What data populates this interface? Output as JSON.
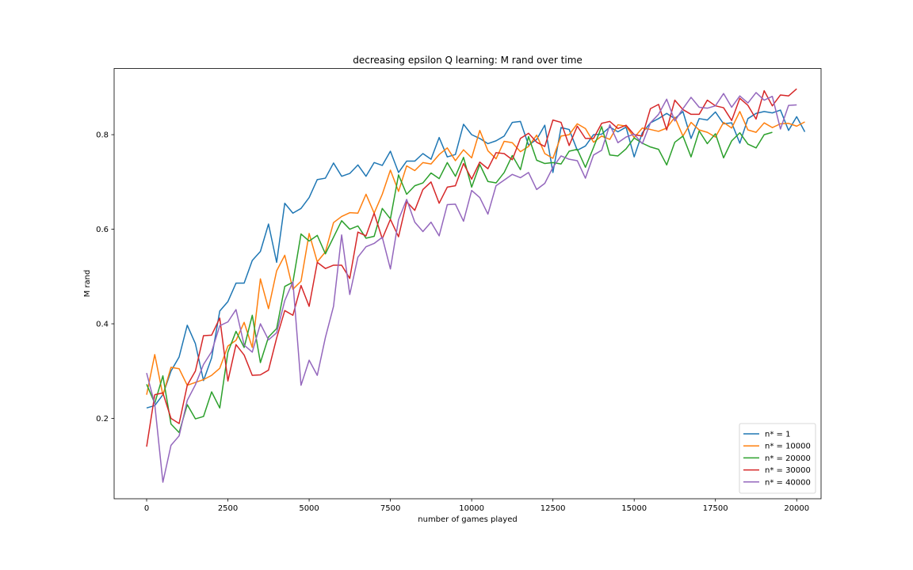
{
  "chart_data": {
    "type": "line",
    "title": "decreasing epsilon Q learning: M rand over time",
    "xlabel": "number of games played",
    "ylabel": "M rand",
    "xlim": [
      -1000,
      20750
    ],
    "ylim": [
      0.03,
      0.94
    ],
    "xticks": [
      0,
      2500,
      5000,
      7500,
      10000,
      12500,
      15000,
      17500,
      20000
    ],
    "yticks": [
      0.2,
      0.4,
      0.6,
      0.8
    ],
    "ytick_labels": [
      "0.2",
      "0.4",
      "0.6",
      "0.8"
    ],
    "grid": false,
    "legend_position": "bottom-right",
    "x_start": 0,
    "x_step": 250,
    "series": [
      {
        "name": "n* = 1",
        "color": "#1f77b4",
        "values": [
          0.222,
          0.227,
          0.25,
          0.3,
          0.33,
          0.397,
          0.358,
          0.28,
          0.328,
          0.427,
          0.447,
          0.486,
          0.486,
          0.534,
          0.553,
          0.611,
          0.53,
          0.655,
          0.634,
          0.644,
          0.667,
          0.705,
          0.708,
          0.74,
          0.712,
          0.718,
          0.736,
          0.712,
          0.741,
          0.735,
          0.765,
          0.72,
          0.744,
          0.744,
          0.76,
          0.748,
          0.794,
          0.753,
          0.758,
          0.822,
          0.8,
          0.792,
          0.781,
          0.787,
          0.797,
          0.826,
          0.828,
          0.778,
          0.79,
          0.82,
          0.72,
          0.815,
          0.811,
          0.767,
          0.776,
          0.8,
          0.801,
          0.816,
          0.806,
          0.816,
          0.753,
          0.804,
          0.825,
          0.834,
          0.845,
          0.834,
          0.849,
          0.792,
          0.834,
          0.831,
          0.848,
          0.823,
          0.825,
          0.782,
          0.834,
          0.845,
          0.849,
          0.846,
          0.852,
          0.809,
          0.838,
          0.806
        ]
      },
      {
        "name": "n* = 10000",
        "color": "#ff7f0e",
        "values": [
          0.25,
          0.335,
          0.249,
          0.308,
          0.305,
          0.27,
          0.276,
          0.282,
          0.291,
          0.306,
          0.353,
          0.365,
          0.403,
          0.35,
          0.495,
          0.432,
          0.512,
          0.545,
          0.473,
          0.49,
          0.591,
          0.531,
          0.552,
          0.614,
          0.627,
          0.635,
          0.634,
          0.674,
          0.634,
          0.674,
          0.725,
          0.68,
          0.734,
          0.724,
          0.741,
          0.738,
          0.758,
          0.772,
          0.745,
          0.768,
          0.751,
          0.809,
          0.766,
          0.749,
          0.786,
          0.783,
          0.764,
          0.775,
          0.799,
          0.76,
          0.75,
          0.797,
          0.8,
          0.823,
          0.813,
          0.784,
          0.797,
          0.79,
          0.821,
          0.818,
          0.794,
          0.814,
          0.811,
          0.807,
          0.814,
          0.837,
          0.797,
          0.826,
          0.81,
          0.805,
          0.795,
          0.826,
          0.814,
          0.849,
          0.81,
          0.805,
          0.825,
          0.815,
          0.823,
          0.824,
          0.818,
          0.827
        ]
      },
      {
        "name": "n* = 20000",
        "color": "#2ca02c",
        "values": [
          0.272,
          0.232,
          0.29,
          0.188,
          0.17,
          0.229,
          0.199,
          0.204,
          0.256,
          0.222,
          0.34,
          0.384,
          0.35,
          0.418,
          0.318,
          0.372,
          0.39,
          0.479,
          0.488,
          0.59,
          0.575,
          0.587,
          0.548,
          0.583,
          0.618,
          0.6,
          0.607,
          0.581,
          0.585,
          0.644,
          0.622,
          0.715,
          0.674,
          0.692,
          0.698,
          0.719,
          0.707,
          0.741,
          0.712,
          0.752,
          0.689,
          0.737,
          0.701,
          0.698,
          0.72,
          0.756,
          0.726,
          0.796,
          0.746,
          0.739,
          0.741,
          0.738,
          0.765,
          0.769,
          0.731,
          0.773,
          0.817,
          0.757,
          0.755,
          0.77,
          0.793,
          0.782,
          0.774,
          0.769,
          0.736,
          0.784,
          0.797,
          0.753,
          0.808,
          0.781,
          0.802,
          0.751,
          0.787,
          0.804,
          0.78,
          0.772,
          0.8,
          0.805
        ]
      },
      {
        "name": "n* = 30000",
        "color": "#d62728",
        "values": [
          0.14,
          0.25,
          0.254,
          0.2,
          0.189,
          0.27,
          0.3,
          0.375,
          0.376,
          0.412,
          0.279,
          0.356,
          0.334,
          0.291,
          0.292,
          0.302,
          0.37,
          0.428,
          0.418,
          0.481,
          0.437,
          0.53,
          0.517,
          0.524,
          0.524,
          0.496,
          0.594,
          0.586,
          0.634,
          0.58,
          0.621,
          0.584,
          0.658,
          0.64,
          0.684,
          0.7,
          0.655,
          0.689,
          0.692,
          0.739,
          0.706,
          0.742,
          0.728,
          0.762,
          0.76,
          0.747,
          0.792,
          0.803,
          0.784,
          0.775,
          0.831,
          0.826,
          0.777,
          0.818,
          0.792,
          0.792,
          0.824,
          0.828,
          0.813,
          0.82,
          0.8,
          0.797,
          0.855,
          0.864,
          0.81,
          0.873,
          0.853,
          0.843,
          0.843,
          0.873,
          0.861,
          0.857,
          0.83,
          0.877,
          0.862,
          0.833,
          0.893,
          0.861,
          0.884,
          0.882,
          0.897
        ]
      },
      {
        "name": "n* = 40000",
        "color": "#9467bd",
        "values": [
          0.296,
          0.23,
          0.065,
          0.143,
          0.163,
          0.238,
          0.271,
          0.314,
          0.341,
          0.396,
          0.404,
          0.43,
          0.355,
          0.34,
          0.4,
          0.366,
          0.381,
          0.449,
          0.489,
          0.27,
          0.323,
          0.291,
          0.371,
          0.437,
          0.588,
          0.462,
          0.541,
          0.563,
          0.57,
          0.583,
          0.516,
          0.62,
          0.663,
          0.615,
          0.595,
          0.615,
          0.586,
          0.652,
          0.653,
          0.617,
          0.682,
          0.667,
          0.632,
          0.692,
          0.704,
          0.716,
          0.709,
          0.72,
          0.684,
          0.697,
          0.731,
          0.755,
          0.748,
          0.745,
          0.708,
          0.757,
          0.767,
          0.821,
          0.783,
          0.795,
          0.801,
          0.781,
          0.825,
          0.843,
          0.875,
          0.829,
          0.855,
          0.879,
          0.858,
          0.856,
          0.861,
          0.887,
          0.858,
          0.882,
          0.867,
          0.889,
          0.873,
          0.881,
          0.812,
          0.862,
          0.863
        ]
      }
    ]
  }
}
